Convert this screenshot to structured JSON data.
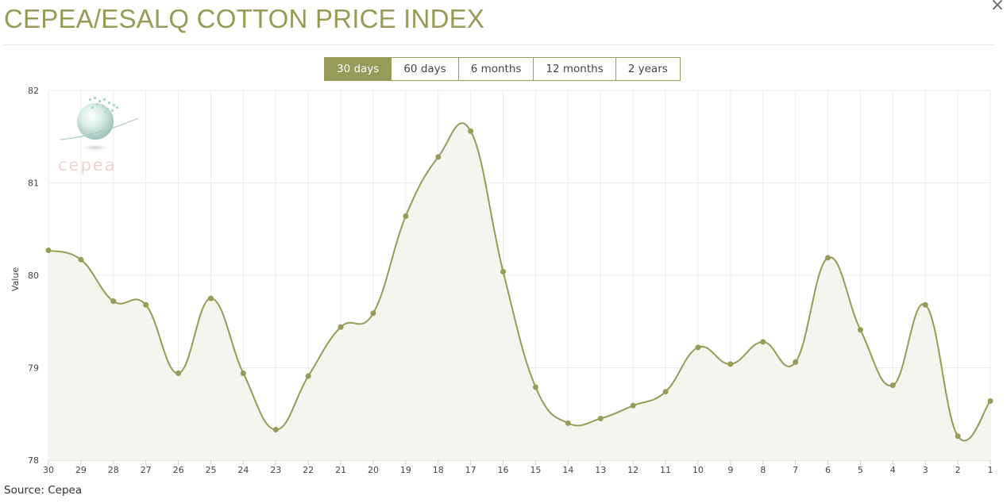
{
  "header": {
    "title": "CEPEA/ESALQ COTTON PRICE INDEX",
    "close_label": "×"
  },
  "range_buttons": [
    {
      "label": "30 days",
      "active": true
    },
    {
      "label": "60 days",
      "active": false
    },
    {
      "label": "6 months",
      "active": false
    },
    {
      "label": "12 months",
      "active": false
    },
    {
      "label": "2 years",
      "active": false
    }
  ],
  "watermark": {
    "text": "cepea",
    "icon": "cepea-globe-logo"
  },
  "footer": {
    "source": "Source: Cepea"
  },
  "colors": {
    "accent": "#989a57",
    "area_fill": "#f5f5f0",
    "grid": "#ececec"
  },
  "chart_data": {
    "type": "area",
    "title": "",
    "xlabel": "",
    "ylabel": "Value",
    "ylim": [
      78,
      82
    ],
    "yticks": [
      78,
      79,
      80,
      81,
      82
    ],
    "grid": true,
    "categories": [
      "30",
      "29",
      "28",
      "27",
      "26",
      "25",
      "24",
      "23",
      "22",
      "21",
      "20",
      "19",
      "18",
      "17",
      "16",
      "15",
      "14",
      "13",
      "12",
      "11",
      "10",
      "9",
      "8",
      "7",
      "6",
      "5",
      "4",
      "3",
      "2",
      "1"
    ],
    "series": [
      {
        "values": [
          80.27,
          80.17,
          79.72,
          79.68,
          78.94,
          79.75,
          78.94,
          78.33,
          78.91,
          79.44,
          79.59,
          80.64,
          81.28,
          81.56,
          80.04,
          78.79,
          78.4,
          78.45,
          78.59,
          78.74,
          79.22,
          79.04,
          79.28,
          79.06,
          80.19,
          79.41,
          78.81,
          79.68,
          78.26,
          78.64
        ]
      }
    ]
  }
}
